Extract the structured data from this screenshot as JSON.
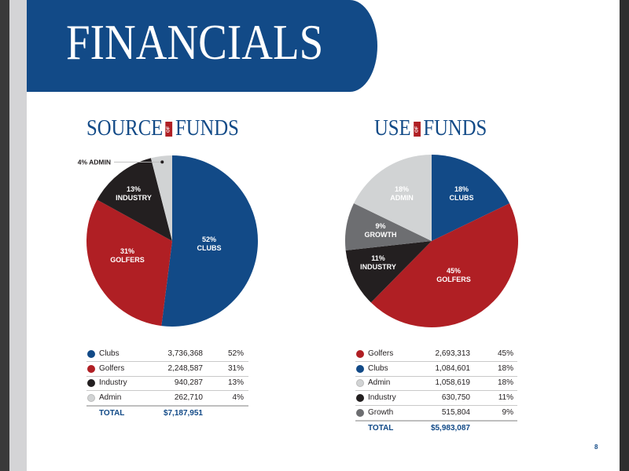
{
  "page": {
    "title": "FINANCIALS",
    "page_number": "8",
    "of_label": "OF"
  },
  "colors": {
    "blue": "#124a87",
    "red": "#b01f24",
    "black": "#231f20",
    "light_gray": "#d1d3d4",
    "gray": "#6d6e71"
  },
  "chart_data": [
    {
      "type": "pie",
      "title_left": "SOURCE",
      "title_right": "FUNDS",
      "slices": [
        {
          "name": "Clubs",
          "label": "CLUBS",
          "pct": 52,
          "value": "3,736,368",
          "pct_label": "52%",
          "color": "#124a87"
        },
        {
          "name": "Golfers",
          "label": "GOLFERS",
          "pct": 31,
          "value": "2,248,587",
          "pct_label": "31%",
          "color": "#b01f24"
        },
        {
          "name": "Industry",
          "label": "INDUSTRY",
          "pct": 13,
          "value": "940,287",
          "pct_label": "13%",
          "color": "#231f20"
        },
        {
          "name": "Admin",
          "label": "ADMIN",
          "pct": 4,
          "value": "262,710",
          "pct_label": "4%",
          "color": "#d1d3d4",
          "outside_label": "4% ADMIN"
        }
      ],
      "total_label": "TOTAL",
      "total_value": "$7,187,951"
    },
    {
      "type": "pie",
      "title_left": "USE",
      "title_right": "FUNDS",
      "slices": [
        {
          "name": "Clubs",
          "label": "CLUBS",
          "pct": 18,
          "value": "1,084,601",
          "pct_label": "18%",
          "color": "#124a87"
        },
        {
          "name": "Golfers",
          "label": "GOLFERS",
          "pct": 45,
          "value": "2,693,313",
          "pct_label": "45%",
          "color": "#b01f24"
        },
        {
          "name": "Industry",
          "label": "INDUSTRY",
          "pct": 11,
          "value": "630,750",
          "pct_label": "11%",
          "color": "#231f20"
        },
        {
          "name": "Growth",
          "label": "GROWTH",
          "pct": 9,
          "value": "515,804",
          "pct_label": "9%",
          "color": "#6d6e71"
        },
        {
          "name": "Admin",
          "label": "ADMIN",
          "pct": 18,
          "value": "1,058,619",
          "pct_label": "18%",
          "color": "#d1d3d4"
        }
      ],
      "table_order": [
        1,
        0,
        4,
        2,
        3
      ],
      "total_label": "TOTAL",
      "total_value": "$5,983,087"
    }
  ]
}
